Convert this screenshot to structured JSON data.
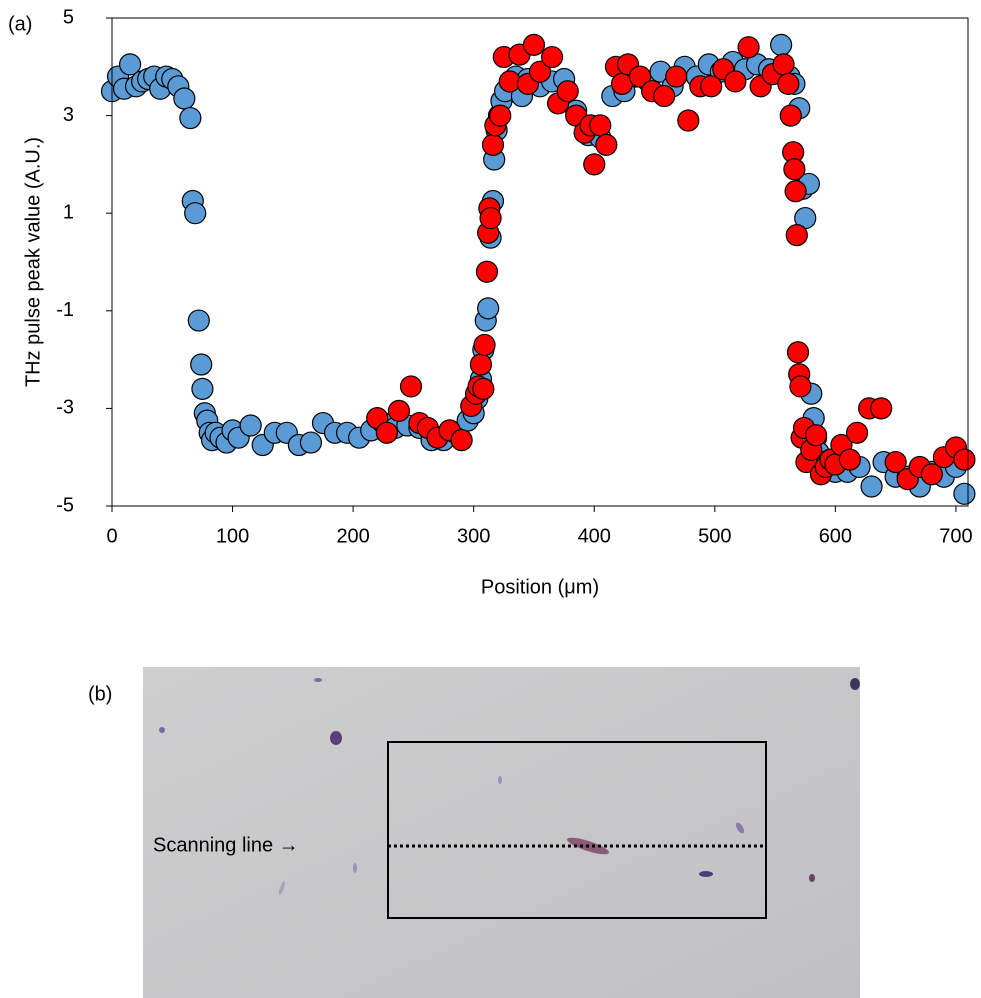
{
  "chart_data": {
    "type": "scatter",
    "panel_label": "(a)",
    "x_label": "Position (μm)",
    "y_label": "THz pulse peak value (A.U.)",
    "xlim": [
      0,
      710
    ],
    "xticks": [
      0,
      100,
      200,
      300,
      400,
      500,
      600,
      700
    ],
    "ylim": [
      -5,
      5
    ],
    "yticks": [
      -5,
      -3,
      -1,
      1,
      3,
      5
    ],
    "series": [
      {
        "color": "#5b9bd5",
        "x": [
          0,
          5,
          10,
          15,
          20,
          25,
          30,
          35,
          40,
          45,
          50,
          55,
          60,
          65,
          67,
          69,
          72,
          74,
          75,
          77,
          79,
          81,
          83,
          86,
          90,
          95,
          100,
          105,
          115,
          125,
          135,
          145,
          155,
          165,
          175,
          185,
          195,
          205,
          215,
          225,
          235,
          245,
          255,
          265,
          275,
          285,
          295,
          300,
          303,
          306,
          308,
          310,
          312,
          314,
          316,
          317,
          319,
          321,
          323,
          326,
          330,
          335,
          340,
          345,
          355,
          365,
          375,
          385,
          395,
          405,
          415,
          425,
          435,
          445,
          455,
          465,
          475,
          485,
          495,
          505,
          515,
          525,
          535,
          545,
          555,
          562,
          566,
          570,
          573,
          575,
          578,
          580,
          582,
          584,
          586,
          590,
          595,
          600,
          610,
          620,
          630,
          640,
          650,
          660,
          670,
          680,
          690,
          700,
          707
        ],
        "values": [
          3.5,
          3.8,
          3.55,
          4.05,
          3.6,
          3.7,
          3.75,
          3.8,
          3.55,
          3.8,
          3.75,
          3.6,
          3.35,
          2.95,
          1.25,
          1.0,
          -1.2,
          -2.1,
          -2.6,
          -3.1,
          -3.25,
          -3.5,
          -3.65,
          -3.5,
          -3.6,
          -3.7,
          -3.45,
          -3.6,
          -3.35,
          -3.75,
          -3.5,
          -3.5,
          -3.75,
          -3.7,
          -3.3,
          -3.5,
          -3.5,
          -3.6,
          -3.45,
          -3.3,
          -3.4,
          -3.35,
          -3.4,
          -3.65,
          -3.65,
          -3.5,
          -3.25,
          -3.1,
          -2.8,
          -2.4,
          -1.8,
          -1.2,
          -0.95,
          0.5,
          1.25,
          2.1,
          2.7,
          3.0,
          3.3,
          3.5,
          3.7,
          3.8,
          3.4,
          3.75,
          3.6,
          3.7,
          3.75,
          3.1,
          2.6,
          2.55,
          3.4,
          3.5,
          3.8,
          3.7,
          3.9,
          3.6,
          4.0,
          3.8,
          4.05,
          3.9,
          4.1,
          3.95,
          4.05,
          3.95,
          4.45,
          3.8,
          3.65,
          3.15,
          1.5,
          0.9,
          1.6,
          -2.7,
          -3.2,
          -3.6,
          -3.9,
          -4.1,
          -4.2,
          -4.3,
          -4.3,
          -4.2,
          -4.6,
          -4.1,
          -4.4,
          -4.4,
          -4.6,
          -4.3,
          -4.4,
          -4.2,
          -4.75
        ]
      },
      {
        "color": "#ff0000",
        "x": [
          220,
          228,
          238,
          248,
          255,
          262,
          270,
          280,
          290,
          298,
          302,
          304,
          306,
          308,
          309,
          311,
          312,
          313,
          314,
          316,
          318,
          322,
          325,
          330,
          338,
          345,
          350,
          355,
          365,
          370,
          378,
          385,
          392,
          397,
          400,
          405,
          410,
          418,
          423,
          428,
          438,
          448,
          458,
          468,
          478,
          488,
          497,
          507,
          517,
          528,
          538,
          548,
          557,
          561,
          563,
          565,
          566,
          567,
          568,
          569,
          570,
          571,
          572,
          574,
          576,
          580,
          584,
          588,
          592,
          596,
          600,
          605,
          612,
          618,
          628,
          638,
          650,
          660,
          670,
          680,
          690,
          700,
          707
        ],
        "values": [
          -3.2,
          -3.5,
          -3.05,
          -2.55,
          -3.3,
          -3.4,
          -3.6,
          -3.45,
          -3.65,
          -2.95,
          -2.7,
          -2.55,
          -2.1,
          -2.6,
          -1.7,
          -0.2,
          0.6,
          1.1,
          0.9,
          2.4,
          2.8,
          3.0,
          4.2,
          3.7,
          4.25,
          3.65,
          4.45,
          3.9,
          4.2,
          3.25,
          3.5,
          3.0,
          2.65,
          2.8,
          2.0,
          2.8,
          2.4,
          4.0,
          3.65,
          4.05,
          3.8,
          3.5,
          3.4,
          3.8,
          2.9,
          3.6,
          3.6,
          3.95,
          3.7,
          4.4,
          3.6,
          3.85,
          4.05,
          3.65,
          3.0,
          2.25,
          1.9,
          1.45,
          0.55,
          -1.85,
          -2.3,
          -2.55,
          -3.6,
          -3.4,
          -4.1,
          -3.85,
          -3.55,
          -4.35,
          -4.2,
          -4.05,
          -4.15,
          -3.75,
          -4.05,
          -3.5,
          -3.0,
          -3.0,
          -4.1,
          -4.45,
          -4.2,
          -4.35,
          -4.0,
          -3.8,
          -4.05
        ]
      }
    ]
  },
  "image_panel": {
    "label": "(b)",
    "annotation": "Scanning line →"
  }
}
